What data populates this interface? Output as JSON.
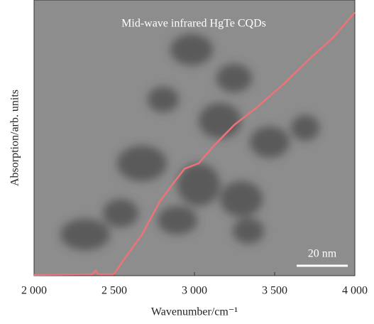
{
  "chart_data": {
    "type": "line",
    "title": "Mid-wave infrared HgTe CQDs",
    "xlabel": "Wavenumber/cm⁻¹",
    "ylabel": "Absorption/arb. units",
    "scale_bar": "20 nm",
    "x": [
      2000,
      2363,
      2385,
      2398,
      2496,
      2562,
      2673,
      2783,
      2872,
      2938,
      3027,
      3115,
      3248,
      3381,
      3558,
      3735,
      3867,
      4000
    ],
    "series": [
      {
        "color": "#ec7378",
        "values": [
          0.003,
          0.005,
          0.02,
          0.005,
          0.005,
          0.06,
          0.15,
          0.27,
          0.34,
          0.39,
          0.41,
          0.47,
          0.55,
          0.61,
          0.7,
          0.8,
          0.87,
          0.96
        ]
      }
    ],
    "xlim": [
      2000,
      4000
    ],
    "ylim": [
      0,
      1
    ],
    "xticks": [
      {
        "value": 2000,
        "label": "2 000"
      },
      {
        "value": 2500,
        "label": "2 500"
      },
      {
        "value": 3000,
        "label": "3 000"
      },
      {
        "value": 3500,
        "label": "3 500"
      },
      {
        "value": 4000,
        "label": "4 000"
      }
    ]
  }
}
